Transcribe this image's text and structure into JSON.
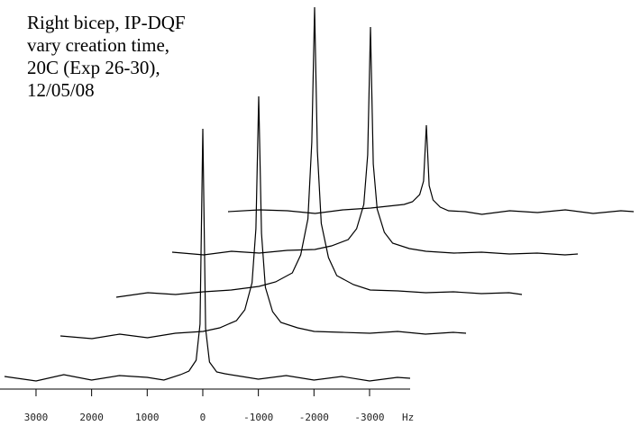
{
  "chart_data": {
    "type": "waterfall",
    "title_lines": [
      "Right bicep, IP-DQF",
      "vary creation time,",
      "20C (Exp 26-30),",
      "12/05/08"
    ],
    "xlabel": "Hz",
    "xlim": [
      3567,
      -3730
    ],
    "xticks": [
      3000,
      2000,
      1000,
      0,
      -1000,
      -2000,
      -3000
    ],
    "x": [
      3567,
      3000,
      2500,
      2000,
      1500,
      1000,
      700,
      400,
      250,
      120,
      50,
      0,
      -50,
      -120,
      -250,
      -400,
      -700,
      -1000,
      -1500,
      -2000,
      -2500,
      -3000,
      -3500,
      -3730
    ],
    "color": "#000000",
    "series": [
      {
        "values": [
          2,
          -3,
          4,
          -2,
          3,
          1,
          -2,
          4,
          8,
          20,
          60,
          277,
          55,
          18,
          7,
          5,
          2,
          -1,
          3,
          -2,
          2,
          -3,
          1,
          0
        ]
      },
      {
        "values": [
          1,
          -2,
          3,
          -1,
          4,
          6,
          10,
          18,
          30,
          60,
          120,
          267,
          115,
          55,
          28,
          16,
          10,
          6,
          5,
          4,
          6,
          3,
          5,
          4
        ]
      },
      {
        "values": [
          -2,
          3,
          1,
          4,
          6,
          10,
          15,
          25,
          45,
          85,
          170,
          320,
          160,
          80,
          42,
          22,
          12,
          6,
          5,
          3,
          4,
          2,
          3,
          1
        ]
      },
      {
        "values": [
          2,
          -1,
          3,
          1,
          4,
          5,
          9,
          16,
          28,
          55,
          110,
          252,
          100,
          50,
          24,
          12,
          6,
          3,
          1,
          2,
          0,
          1,
          -1,
          0
        ]
      },
      {
        "values": [
          1,
          3,
          2,
          -1,
          3,
          5,
          7,
          9,
          12,
          20,
          35,
          97,
          30,
          14,
          6,
          2,
          1,
          -2,
          2,
          0,
          3,
          -1,
          2,
          1
        ]
      }
    ]
  }
}
